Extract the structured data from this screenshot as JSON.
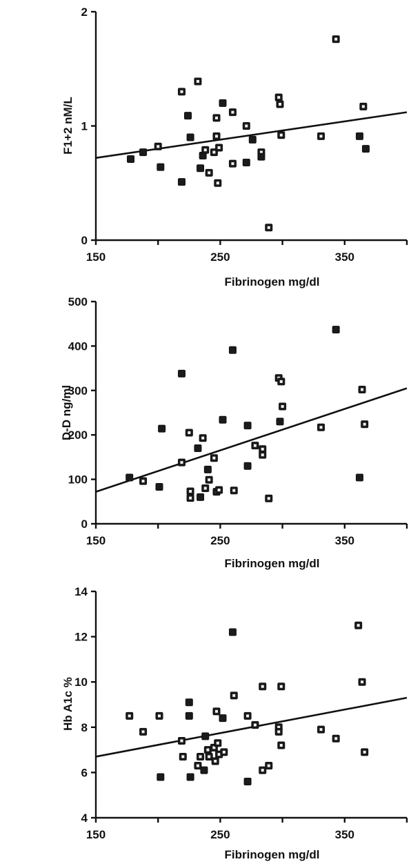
{
  "chart_data": [
    {
      "type": "scatter",
      "xlabel": "Fibrinogen     mg/dl",
      "ylabel": "F1+2   nM/L",
      "xlim": [
        150,
        400
      ],
      "ylim": [
        0,
        2
      ],
      "xticks": [
        150,
        250,
        350
      ],
      "xtick_labels": [
        "150",
        "250",
        "350"
      ],
      "yticks": [
        0,
        1,
        2
      ],
      "ytick_labels": [
        "0",
        "1",
        "2"
      ],
      "fit_line": {
        "x": [
          150,
          400
        ],
        "y": [
          0.72,
          1.12
        ]
      },
      "points": [
        {
          "x": 178,
          "y": 0.71,
          "marker": "filled"
        },
        {
          "x": 188,
          "y": 0.77,
          "marker": "filled"
        },
        {
          "x": 200,
          "y": 0.82,
          "marker": "open"
        },
        {
          "x": 202,
          "y": 0.64,
          "marker": "filled"
        },
        {
          "x": 219,
          "y": 1.3,
          "marker": "open"
        },
        {
          "x": 219,
          "y": 0.51,
          "marker": "filled"
        },
        {
          "x": 224,
          "y": 1.09,
          "marker": "filled"
        },
        {
          "x": 226,
          "y": 0.9,
          "marker": "filled"
        },
        {
          "x": 232,
          "y": 1.39,
          "marker": "open"
        },
        {
          "x": 234,
          "y": 0.63,
          "marker": "filled"
        },
        {
          "x": 236,
          "y": 0.74,
          "marker": "filled"
        },
        {
          "x": 238,
          "y": 0.79,
          "marker": "open"
        },
        {
          "x": 241,
          "y": 0.59,
          "marker": "open"
        },
        {
          "x": 245,
          "y": 0.77,
          "marker": "open"
        },
        {
          "x": 247,
          "y": 1.07,
          "marker": "open"
        },
        {
          "x": 247,
          "y": 0.91,
          "marker": "open"
        },
        {
          "x": 248,
          "y": 0.5,
          "marker": "open"
        },
        {
          "x": 249,
          "y": 0.81,
          "marker": "open"
        },
        {
          "x": 252,
          "y": 1.2,
          "marker": "filled"
        },
        {
          "x": 260,
          "y": 1.12,
          "marker": "open"
        },
        {
          "x": 260,
          "y": 0.67,
          "marker": "open"
        },
        {
          "x": 271,
          "y": 1.0,
          "marker": "open"
        },
        {
          "x": 271,
          "y": 0.68,
          "marker": "filled"
        },
        {
          "x": 276,
          "y": 0.88,
          "marker": "filled"
        },
        {
          "x": 283,
          "y": 0.77,
          "marker": "open"
        },
        {
          "x": 283,
          "y": 0.73,
          "marker": "filled"
        },
        {
          "x": 289,
          "y": 0.11,
          "marker": "open"
        },
        {
          "x": 297,
          "y": 1.25,
          "marker": "open"
        },
        {
          "x": 298,
          "y": 1.19,
          "marker": "open"
        },
        {
          "x": 299,
          "y": 0.92,
          "marker": "open"
        },
        {
          "x": 331,
          "y": 0.91,
          "marker": "open"
        },
        {
          "x": 343,
          "y": 1.76,
          "marker": "open"
        },
        {
          "x": 362,
          "y": 0.91,
          "marker": "filled"
        },
        {
          "x": 365,
          "y": 1.17,
          "marker": "open"
        },
        {
          "x": 367,
          "y": 0.8,
          "marker": "filled"
        }
      ]
    },
    {
      "type": "scatter",
      "xlabel": "Fibrinogen     mg/dl",
      "ylabel": "D-D   ng/ml",
      "xlim": [
        150,
        400
      ],
      "ylim": [
        0,
        500
      ],
      "xticks": [
        150,
        250,
        350
      ],
      "xtick_labels": [
        "150",
        "250",
        "350"
      ],
      "yticks": [
        0,
        100,
        200,
        300,
        400,
        500
      ],
      "ytick_labels": [
        "0",
        "100",
        "200",
        "300",
        "400",
        "500"
      ],
      "fit_line": {
        "x": [
          150,
          400
        ],
        "y": [
          72,
          305
        ]
      },
      "points": [
        {
          "x": 177,
          "y": 104,
          "marker": "filled"
        },
        {
          "x": 188,
          "y": 96,
          "marker": "open"
        },
        {
          "x": 201,
          "y": 83,
          "marker": "filled"
        },
        {
          "x": 203,
          "y": 214,
          "marker": "filled"
        },
        {
          "x": 219,
          "y": 338,
          "marker": "filled"
        },
        {
          "x": 219,
          "y": 138,
          "marker": "open"
        },
        {
          "x": 225,
          "y": 205,
          "marker": "open"
        },
        {
          "x": 226,
          "y": 73,
          "marker": "open"
        },
        {
          "x": 226,
          "y": 58,
          "marker": "open"
        },
        {
          "x": 232,
          "y": 170,
          "marker": "filled"
        },
        {
          "x": 234,
          "y": 60,
          "marker": "filled"
        },
        {
          "x": 236,
          "y": 193,
          "marker": "open"
        },
        {
          "x": 238,
          "y": 80,
          "marker": "open"
        },
        {
          "x": 240,
          "y": 122,
          "marker": "filled"
        },
        {
          "x": 241,
          "y": 99,
          "marker": "open"
        },
        {
          "x": 245,
          "y": 148,
          "marker": "open"
        },
        {
          "x": 247,
          "y": 72,
          "marker": "open"
        },
        {
          "x": 249,
          "y": 76,
          "marker": "open"
        },
        {
          "x": 252,
          "y": 234,
          "marker": "filled"
        },
        {
          "x": 260,
          "y": 391,
          "marker": "filled"
        },
        {
          "x": 261,
          "y": 75,
          "marker": "open"
        },
        {
          "x": 272,
          "y": 221,
          "marker": "filled"
        },
        {
          "x": 272,
          "y": 130,
          "marker": "filled"
        },
        {
          "x": 278,
          "y": 176,
          "marker": "open"
        },
        {
          "x": 284,
          "y": 168,
          "marker": "open"
        },
        {
          "x": 284,
          "y": 155,
          "marker": "open"
        },
        {
          "x": 289,
          "y": 57,
          "marker": "open"
        },
        {
          "x": 297,
          "y": 328,
          "marker": "open"
        },
        {
          "x": 298,
          "y": 230,
          "marker": "filled"
        },
        {
          "x": 299,
          "y": 320,
          "marker": "open"
        },
        {
          "x": 300,
          "y": 264,
          "marker": "open"
        },
        {
          "x": 331,
          "y": 217,
          "marker": "open"
        },
        {
          "x": 343,
          "y": 437,
          "marker": "filled"
        },
        {
          "x": 362,
          "y": 104,
          "marker": "filled"
        },
        {
          "x": 364,
          "y": 302,
          "marker": "open"
        },
        {
          "x": 366,
          "y": 224,
          "marker": "open"
        }
      ]
    },
    {
      "type": "scatter",
      "xlabel": "Fibrinogen     mg/dl",
      "ylabel": "Hb  A1c  %",
      "xlim": [
        150,
        400
      ],
      "ylim": [
        4,
        14
      ],
      "xticks": [
        150,
        250,
        350
      ],
      "xtick_labels": [
        "150",
        "250",
        "350"
      ],
      "yticks": [
        4,
        6,
        8,
        10,
        12,
        14
      ],
      "ytick_labels": [
        "4",
        "6",
        "8",
        "10",
        "12",
        "14"
      ],
      "fit_line": {
        "x": [
          150,
          400
        ],
        "y": [
          6.7,
          9.3
        ]
      },
      "points": [
        {
          "x": 177,
          "y": 8.5,
          "marker": "open"
        },
        {
          "x": 188,
          "y": 7.8,
          "marker": "open"
        },
        {
          "x": 201,
          "y": 8.5,
          "marker": "open"
        },
        {
          "x": 202,
          "y": 5.8,
          "marker": "filled"
        },
        {
          "x": 219,
          "y": 7.4,
          "marker": "open"
        },
        {
          "x": 220,
          "y": 6.7,
          "marker": "open"
        },
        {
          "x": 225,
          "y": 9.1,
          "marker": "filled"
        },
        {
          "x": 225,
          "y": 8.5,
          "marker": "filled"
        },
        {
          "x": 226,
          "y": 5.8,
          "marker": "filled"
        },
        {
          "x": 232,
          "y": 6.3,
          "marker": "open"
        },
        {
          "x": 234,
          "y": 6.7,
          "marker": "open"
        },
        {
          "x": 237,
          "y": 6.1,
          "marker": "filled"
        },
        {
          "x": 238,
          "y": 7.6,
          "marker": "filled"
        },
        {
          "x": 240,
          "y": 7.0,
          "marker": "open"
        },
        {
          "x": 241,
          "y": 6.7,
          "marker": "open"
        },
        {
          "x": 245,
          "y": 7.1,
          "marker": "open"
        },
        {
          "x": 246,
          "y": 6.5,
          "marker": "open"
        },
        {
          "x": 247,
          "y": 8.7,
          "marker": "open"
        },
        {
          "x": 248,
          "y": 7.3,
          "marker": "open"
        },
        {
          "x": 249,
          "y": 6.8,
          "marker": "open"
        },
        {
          "x": 252,
          "y": 8.4,
          "marker": "filled"
        },
        {
          "x": 253,
          "y": 6.9,
          "marker": "open"
        },
        {
          "x": 260,
          "y": 12.2,
          "marker": "filled"
        },
        {
          "x": 261,
          "y": 9.4,
          "marker": "open"
        },
        {
          "x": 272,
          "y": 8.5,
          "marker": "open"
        },
        {
          "x": 272,
          "y": 5.6,
          "marker": "filled"
        },
        {
          "x": 278,
          "y": 8.1,
          "marker": "open"
        },
        {
          "x": 284,
          "y": 9.8,
          "marker": "open"
        },
        {
          "x": 284,
          "y": 6.1,
          "marker": "open"
        },
        {
          "x": 289,
          "y": 6.3,
          "marker": "open"
        },
        {
          "x": 297,
          "y": 8.0,
          "marker": "open"
        },
        {
          "x": 297,
          "y": 7.8,
          "marker": "open"
        },
        {
          "x": 299,
          "y": 7.2,
          "marker": "open"
        },
        {
          "x": 299,
          "y": 9.8,
          "marker": "open"
        },
        {
          "x": 331,
          "y": 7.9,
          "marker": "open"
        },
        {
          "x": 343,
          "y": 7.5,
          "marker": "open"
        },
        {
          "x": 361,
          "y": 12.5,
          "marker": "open"
        },
        {
          "x": 364,
          "y": 10.0,
          "marker": "open"
        },
        {
          "x": 366,
          "y": 6.9,
          "marker": "open"
        }
      ]
    }
  ]
}
